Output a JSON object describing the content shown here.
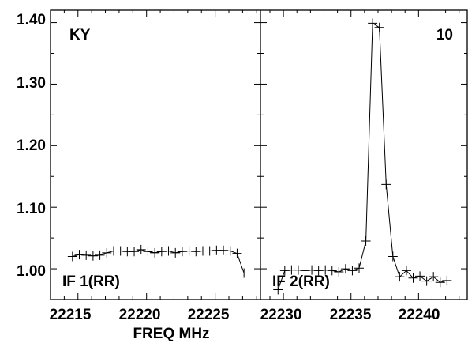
{
  "chart_data": {
    "type": "line",
    "xlabel": "FREQ MHz",
    "ylim": [
      0.95,
      1.42
    ],
    "y_ticks": [
      {
        "value": 1.0,
        "label": "1.00"
      },
      {
        "value": 1.1,
        "label": "1.10"
      },
      {
        "value": 1.2,
        "label": "1.20"
      },
      {
        "value": 1.3,
        "label": "1.30"
      },
      {
        "value": 1.4,
        "label": "1.40"
      }
    ],
    "corner_labels": {
      "top_left": "KY",
      "top_right": "10"
    },
    "panels": [
      {
        "name": "IF 1(RR)",
        "xlim": [
          22213.0,
          22228.3
        ],
        "x_ticks": [
          {
            "value": 22215,
            "label": "22215"
          },
          {
            "value": 22220,
            "label": "22220"
          },
          {
            "value": 22225,
            "label": "22225"
          }
        ],
        "points": [
          [
            22214.6,
            1.02
          ],
          [
            22215.1,
            1.023
          ],
          [
            22215.6,
            1.022
          ],
          [
            22216.1,
            1.021
          ],
          [
            22216.6,
            1.022
          ],
          [
            22217.1,
            1.026
          ],
          [
            22217.6,
            1.029
          ],
          [
            22218.1,
            1.029
          ],
          [
            22218.6,
            1.028
          ],
          [
            22219.1,
            1.028
          ],
          [
            22219.6,
            1.031
          ],
          [
            22220.1,
            1.028
          ],
          [
            22220.6,
            1.026
          ],
          [
            22221.1,
            1.028
          ],
          [
            22221.6,
            1.029
          ],
          [
            22222.1,
            1.026
          ],
          [
            22222.6,
            1.028
          ],
          [
            22223.1,
            1.029
          ],
          [
            22223.6,
            1.028
          ],
          [
            22224.1,
            1.029
          ],
          [
            22224.6,
            1.029
          ],
          [
            22225.1,
            1.03
          ],
          [
            22225.6,
            1.03
          ],
          [
            22226.1,
            1.029
          ],
          [
            22226.6,
            1.025
          ],
          [
            22227.1,
            0.993
          ]
        ]
      },
      {
        "name": "IF 2(RR)",
        "xlim": [
          22228.3,
          22243.6
        ],
        "x_ticks": [
          {
            "value": 22230,
            "label": "22230"
          },
          {
            "value": 22235,
            "label": "22235"
          },
          {
            "value": 22240,
            "label": "22240"
          }
        ],
        "points": [
          [
            22229.6,
            0.966
          ],
          [
            22230.1,
            0.997
          ],
          [
            22230.6,
            0.998
          ],
          [
            22231.1,
            0.998
          ],
          [
            22231.6,
            0.997
          ],
          [
            22232.1,
            0.998
          ],
          [
            22232.6,
            0.997
          ],
          [
            22233.1,
            0.998
          ],
          [
            22233.6,
            0.997
          ],
          [
            22234.1,
            0.995
          ],
          [
            22234.6,
            1.0
          ],
          [
            22235.1,
            0.997
          ],
          [
            22235.6,
            1.001
          ],
          [
            22236.1,
            1.045
          ],
          [
            22236.6,
            1.399
          ],
          [
            22237.1,
            1.392
          ],
          [
            22237.6,
            1.137
          ],
          [
            22238.1,
            1.02
          ],
          [
            22238.6,
            0.987
          ],
          [
            22239.1,
            0.997
          ],
          [
            22239.6,
            0.985
          ],
          [
            22240.1,
            0.988
          ],
          [
            22240.6,
            0.98
          ],
          [
            22241.1,
            0.987
          ],
          [
            22241.6,
            0.978
          ],
          [
            22242.1,
            0.981
          ]
        ]
      }
    ]
  }
}
